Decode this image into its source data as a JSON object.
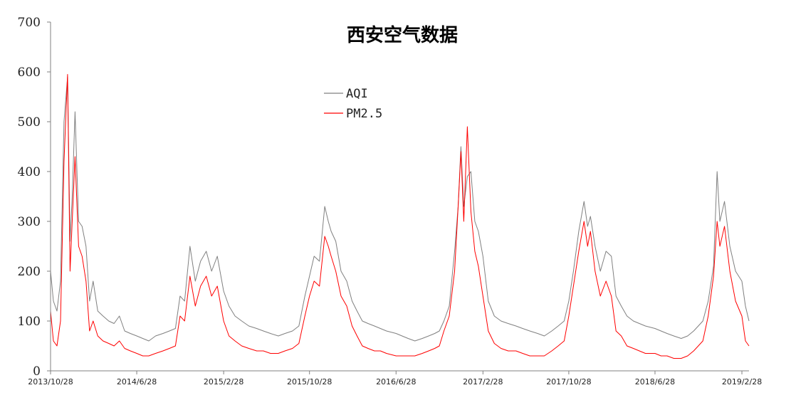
{
  "chart_data": {
    "type": "line",
    "title": "西安空气数据",
    "xlabel": "",
    "ylabel": "",
    "ylim": [
      0,
      700
    ],
    "y_ticks": [
      0,
      100,
      200,
      300,
      400,
      500,
      600,
      700
    ],
    "x_ticks": [
      "2013/10/28",
      "2014/6/28",
      "2015/2/28",
      "2015/10/28",
      "2016/6/28",
      "2017/2/28",
      "2017/10/28",
      "2018/6/28",
      "2019/2/28"
    ],
    "x_start": "2013/10/28",
    "x_end": "2019/3/20",
    "grid": false,
    "legend_position": "top-center",
    "series": [
      {
        "name": "AQI",
        "color": "#808080",
        "x": [
          "2013/10/28",
          "2013/11/5",
          "2013/11/15",
          "2013/11/25",
          "2013/12/5",
          "2013/12/15",
          "2013/12/22",
          "2013/12/28",
          "2014/1/5",
          "2014/1/15",
          "2014/1/25",
          "2014/2/5",
          "2014/2/15",
          "2014/2/25",
          "2014/3/10",
          "2014/3/25",
          "2014/4/10",
          "2014/4/25",
          "2014/5/10",
          "2014/5/25",
          "2014/6/10",
          "2014/6/28",
          "2014/7/15",
          "2014/8/1",
          "2014/8/20",
          "2014/9/10",
          "2014/9/28",
          "2014/10/15",
          "2014/10/28",
          "2014/11/10",
          "2014/11/25",
          "2014/12/10",
          "2014/12/25",
          "2015/1/10",
          "2015/1/25",
          "2015/2/10",
          "2015/2/28",
          "2015/3/15",
          "2015/4/1",
          "2015/4/20",
          "2015/5/10",
          "2015/6/1",
          "2015/6/20",
          "2015/7/10",
          "2015/8/1",
          "2015/8/20",
          "2015/9/10",
          "2015/9/28",
          "2015/10/15",
          "2015/10/28",
          "2015/11/10",
          "2015/11/25",
          "2015/12/10",
          "2015/12/20",
          "2015/12/28",
          "2016/1/10",
          "2016/1/25",
          "2016/2/10",
          "2016/2/25",
          "2016/3/10",
          "2016/3/25",
          "2016/4/10",
          "2016/4/28",
          "2016/5/15",
          "2016/6/1",
          "2016/6/28",
          "2016/7/15",
          "2016/8/1",
          "2016/8/20",
          "2016/9/10",
          "2016/9/28",
          "2016/10/15",
          "2016/10/28",
          "2016/11/10",
          "2016/11/25",
          "2016/12/10",
          "2016/12/20",
          "2016/12/28",
          "2017/1/5",
          "2017/1/15",
          "2017/1/25",
          "2017/2/5",
          "2017/2/15",
          "2017/2/28",
          "2017/3/15",
          "2017/4/1",
          "2017/4/20",
          "2017/5/10",
          "2017/6/1",
          "2017/6/20",
          "2017/7/10",
          "2017/8/1",
          "2017/8/20",
          "2017/9/10",
          "2017/9/28",
          "2017/10/15",
          "2017/10/28",
          "2017/11/10",
          "2017/11/25",
          "2017/12/10",
          "2017/12/20",
          "2017/12/28",
          "2018/1/10",
          "2018/1/25",
          "2018/2/10",
          "2018/2/25",
          "2018/3/10",
          "2018/3/25",
          "2018/4/10",
          "2018/4/28",
          "2018/5/15",
          "2018/6/1",
          "2018/6/28",
          "2018/7/15",
          "2018/8/1",
          "2018/8/20",
          "2018/9/10",
          "2018/9/28",
          "2018/10/15",
          "2018/10/28",
          "2018/11/10",
          "2018/11/25",
          "2018/12/10",
          "2018/12/20",
          "2018/12/28",
          "2019/1/10",
          "2019/1/25",
          "2019/2/10",
          "2019/2/28",
          "2019/3/10",
          "2019/3/20"
        ],
        "values": [
          200,
          140,
          120,
          180,
          500,
          590,
          260,
          350,
          520,
          300,
          290,
          250,
          140,
          180,
          120,
          110,
          100,
          95,
          110,
          80,
          75,
          70,
          65,
          60,
          70,
          75,
          80,
          85,
          150,
          140,
          250,
          180,
          220,
          240,
          200,
          230,
          160,
          130,
          110,
          100,
          90,
          85,
          80,
          75,
          70,
          75,
          80,
          90,
          150,
          190,
          230,
          220,
          330,
          300,
          280,
          260,
          200,
          180,
          140,
          120,
          100,
          95,
          90,
          85,
          80,
          75,
          70,
          65,
          60,
          65,
          70,
          75,
          80,
          100,
          130,
          240,
          330,
          450,
          330,
          390,
          400,
          300,
          280,
          230,
          140,
          110,
          100,
          95,
          90,
          85,
          80,
          75,
          70,
          80,
          90,
          100,
          140,
          200,
          280,
          340,
          290,
          310,
          250,
          200,
          240,
          230,
          150,
          130,
          110,
          100,
          95,
          90,
          85,
          80,
          75,
          70,
          65,
          70,
          80,
          90,
          100,
          140,
          210,
          400,
          300,
          340,
          250,
          200,
          180,
          130,
          100
        ]
      },
      {
        "name": "PM2.5",
        "color": "#ff0000",
        "x": [
          "2013/10/28",
          "2013/11/5",
          "2013/11/15",
          "2013/11/25",
          "2013/12/5",
          "2013/12/15",
          "2013/12/22",
          "2013/12/28",
          "2014/1/5",
          "2014/1/15",
          "2014/1/25",
          "2014/2/5",
          "2014/2/15",
          "2014/2/25",
          "2014/3/10",
          "2014/3/25",
          "2014/4/10",
          "2014/4/25",
          "2014/5/10",
          "2014/5/25",
          "2014/6/10",
          "2014/6/28",
          "2014/7/15",
          "2014/8/1",
          "2014/8/20",
          "2014/9/10",
          "2014/9/28",
          "2014/10/15",
          "2014/10/28",
          "2014/11/10",
          "2014/11/25",
          "2014/12/10",
          "2014/12/25",
          "2015/1/10",
          "2015/1/25",
          "2015/2/10",
          "2015/2/28",
          "2015/3/15",
          "2015/4/1",
          "2015/4/20",
          "2015/5/10",
          "2015/6/1",
          "2015/6/20",
          "2015/7/10",
          "2015/8/1",
          "2015/8/20",
          "2015/9/10",
          "2015/9/28",
          "2015/10/15",
          "2015/10/28",
          "2015/11/10",
          "2015/11/25",
          "2015/12/10",
          "2015/12/20",
          "2015/12/28",
          "2016/1/10",
          "2016/1/25",
          "2016/2/10",
          "2016/2/25",
          "2016/3/10",
          "2016/3/25",
          "2016/4/10",
          "2016/4/28",
          "2016/5/15",
          "2016/6/1",
          "2016/6/28",
          "2016/7/15",
          "2016/8/1",
          "2016/8/20",
          "2016/9/10",
          "2016/9/28",
          "2016/10/15",
          "2016/10/28",
          "2016/11/10",
          "2016/11/25",
          "2016/12/10",
          "2016/12/20",
          "2016/12/28",
          "2017/1/5",
          "2017/1/15",
          "2017/1/25",
          "2017/2/5",
          "2017/2/15",
          "2017/2/28",
          "2017/3/15",
          "2017/4/1",
          "2017/4/20",
          "2017/5/10",
          "2017/6/1",
          "2017/6/20",
          "2017/7/10",
          "2017/8/1",
          "2017/8/20",
          "2017/9/10",
          "2017/9/28",
          "2017/10/15",
          "2017/10/28",
          "2017/11/10",
          "2017/11/25",
          "2017/12/10",
          "2017/12/20",
          "2017/12/28",
          "2018/1/10",
          "2018/1/25",
          "2018/2/10",
          "2018/2/25",
          "2018/3/10",
          "2018/3/25",
          "2018/4/10",
          "2018/4/28",
          "2018/5/15",
          "2018/6/1",
          "2018/6/28",
          "2018/7/15",
          "2018/8/1",
          "2018/8/20",
          "2018/9/10",
          "2018/9/28",
          "2018/10/15",
          "2018/10/28",
          "2018/11/10",
          "2018/11/25",
          "2018/12/10",
          "2018/12/20",
          "2018/12/28",
          "2019/1/10",
          "2019/1/25",
          "2019/2/10",
          "2019/2/28",
          "2019/3/10",
          "2019/3/20"
        ],
        "values": [
          120,
          60,
          50,
          100,
          420,
          595,
          200,
          300,
          430,
          250,
          230,
          180,
          80,
          100,
          70,
          60,
          55,
          50,
          60,
          45,
          40,
          35,
          30,
          30,
          35,
          40,
          45,
          50,
          110,
          100,
          190,
          130,
          170,
          190,
          150,
          170,
          100,
          70,
          60,
          50,
          45,
          40,
          40,
          35,
          35,
          40,
          45,
          55,
          110,
          150,
          180,
          170,
          270,
          250,
          230,
          200,
          150,
          130,
          90,
          70,
          50,
          45,
          40,
          40,
          35,
          30,
          30,
          30,
          30,
          35,
          40,
          45,
          50,
          80,
          110,
          200,
          330,
          440,
          300,
          490,
          320,
          240,
          210,
          150,
          80,
          55,
          45,
          40,
          40,
          35,
          30,
          30,
          30,
          40,
          50,
          60,
          110,
          170,
          240,
          300,
          250,
          280,
          200,
          150,
          180,
          150,
          80,
          70,
          50,
          45,
          40,
          35,
          35,
          30,
          30,
          25,
          25,
          30,
          40,
          50,
          60,
          110,
          190,
          300,
          250,
          290,
          200,
          140,
          110,
          60,
          50
        ]
      }
    ]
  }
}
